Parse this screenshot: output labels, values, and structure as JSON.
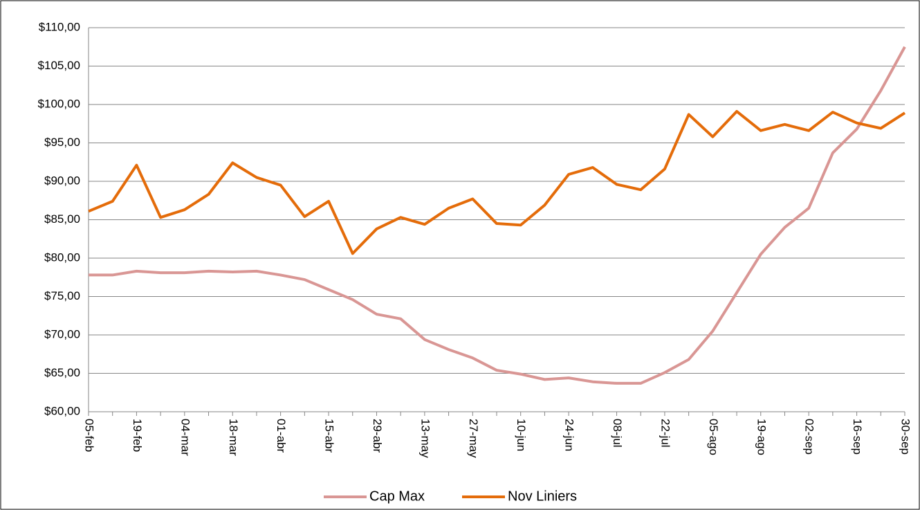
{
  "chart_data": {
    "type": "line",
    "categories": [
      "05-feb",
      null,
      "19-feb",
      null,
      "04-mar",
      null,
      "18-mar",
      null,
      "01-abr",
      null,
      "15-abr",
      null,
      "29-abr",
      null,
      "13-may",
      null,
      "27-may",
      null,
      "10-jun",
      null,
      "24-jun",
      null,
      "08-jul",
      null,
      "22-jul",
      null,
      "05-ago",
      null,
      "19-ago",
      null,
      "02-sep",
      null,
      "16-sep",
      null,
      "30-sep"
    ],
    "series": [
      {
        "name": "Cap Max",
        "color": "#d99694",
        "values": [
          77.8,
          77.8,
          78.3,
          78.1,
          78.1,
          78.3,
          78.2,
          78.3,
          77.8,
          77.2,
          75.9,
          74.6,
          72.7,
          72.1,
          69.4,
          68.1,
          67.0,
          65.4,
          64.9,
          64.2,
          64.4,
          63.9,
          63.7,
          63.7,
          65.1,
          66.8,
          70.5,
          75.5,
          80.5,
          84.0,
          86.5,
          93.7,
          96.8,
          101.8,
          107.5
        ]
      },
      {
        "name": "Nov Liniers",
        "color": "#e46c0a",
        "values": [
          86.1,
          87.4,
          92.1,
          85.3,
          86.3,
          88.3,
          92.4,
          90.5,
          89.5,
          85.4,
          87.4,
          80.6,
          83.8,
          85.3,
          84.4,
          86.5,
          87.7,
          84.5,
          84.3,
          86.9,
          90.9,
          91.8,
          89.6,
          88.9,
          91.6,
          98.7,
          95.8,
          99.1,
          96.6,
          97.4,
          96.6,
          99.0,
          97.6,
          96.9,
          98.9
        ]
      }
    ],
    "ylim": [
      60,
      110
    ],
    "yticks": [
      {
        "value": 60,
        "label": "$60,00"
      },
      {
        "value": 65,
        "label": "$65,00"
      },
      {
        "value": 70,
        "label": "$70,00"
      },
      {
        "value": 75,
        "label": "$75,00"
      },
      {
        "value": 80,
        "label": "$80,00"
      },
      {
        "value": 85,
        "label": "$85,00"
      },
      {
        "value": 90,
        "label": "$90,00"
      },
      {
        "value": 95,
        "label": "$95,00"
      },
      {
        "value": 100,
        "label": "$100,00"
      },
      {
        "value": 105,
        "label": "$105,00"
      },
      {
        "value": 110,
        "label": "$110,00"
      }
    ],
    "grid": true,
    "legend": "bottom"
  }
}
